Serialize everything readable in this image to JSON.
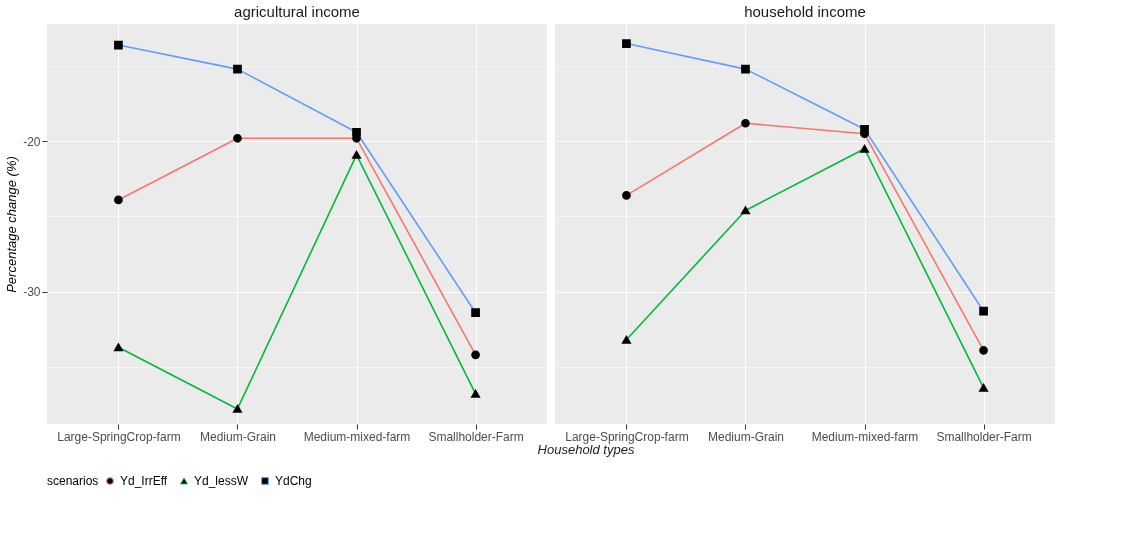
{
  "chart_data": [
    {
      "type": "line",
      "title": "agricultural income",
      "ylabel": "Percentage change (%)",
      "xlabel": "Household types",
      "legend_title": "scenarios",
      "legend": "bottom",
      "grid": true,
      "line_style": "solid",
      "categories": [
        "Large-SpringCrop-farm",
        "Medium-Grain",
        "Medium-mixed-farm",
        "Smallholder-Farm"
      ],
      "ylim": [
        -38.8,
        -12.2
      ],
      "yticks": [
        {
          "value": -35,
          "label": null
        },
        -30,
        {
          "value": -25,
          "label": null
        },
        -20,
        {
          "value": -15,
          "label": null
        }
      ],
      "series": [
        {
          "name": "Yd_IrrEff",
          "color": "#f8766d",
          "marker": "circle",
          "values": [
            -23.9,
            -19.8,
            -19.8,
            -34.2
          ]
        },
        {
          "name": "Yd_lessW",
          "color": "#00ba38",
          "marker": "triangle",
          "values": [
            -33.7,
            -37.8,
            -20.9,
            -36.8
          ]
        },
        {
          "name": "YdChg",
          "color": "#619cff",
          "marker": "square",
          "values": [
            -13.6,
            -15.2,
            -19.4,
            -31.4
          ]
        }
      ]
    },
    {
      "type": "line",
      "title": "household income",
      "grid": true,
      "line_style": "solid",
      "tick_labels": "x",
      "categories": [
        "Large-SpringCrop-farm",
        "Medium-Grain",
        "Medium-mixed-farm",
        "Smallholder-Farm"
      ],
      "ylim": [
        -38.8,
        -12.2
      ],
      "yticks": [
        {
          "value": -35,
          "label": null
        },
        -30,
        {
          "value": -25,
          "label": null
        },
        -20,
        {
          "value": -15,
          "label": null
        }
      ],
      "series": [
        {
          "name": "Yd_IrrEff",
          "color": "#f8766d",
          "marker": "circle",
          "values": [
            -23.6,
            -18.8,
            -19.5,
            -33.9
          ]
        },
        {
          "name": "Yd_lessW",
          "color": "#00ba38",
          "marker": "triangle",
          "values": [
            -33.2,
            -24.6,
            -20.5,
            -36.4
          ]
        },
        {
          "name": "YdChg",
          "color": "#619cff",
          "marker": "square",
          "values": [
            -13.5,
            -15.2,
            -19.2,
            -31.3
          ]
        }
      ]
    }
  ]
}
